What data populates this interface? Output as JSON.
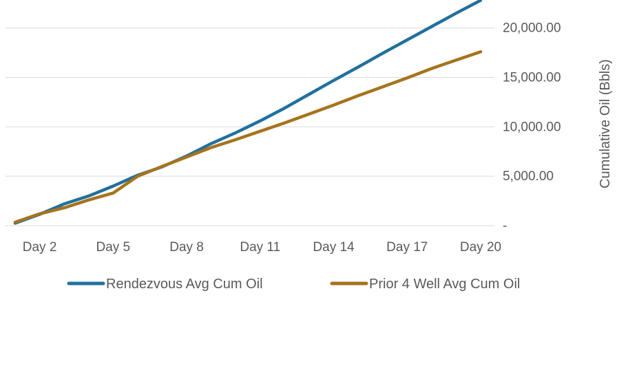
{
  "chart_data": {
    "type": "line",
    "title": "",
    "xlabel": "",
    "ylabel": "Cumulative Oil (Bbls)",
    "categories": [
      "Day 1",
      "Day 2",
      "Day 3",
      "Day 4",
      "Day 5",
      "Day 6",
      "Day 7",
      "Day 8",
      "Day 9",
      "Day 10",
      "Day 11",
      "Day 12",
      "Day 13",
      "Day 14",
      "Day 15",
      "Day 16",
      "Day 17",
      "Day 18",
      "Day 19",
      "Day 20"
    ],
    "x_tick_labels": [
      "Day 2",
      "Day 5",
      "Day 8",
      "Day 11",
      "Day 14",
      "Day 17",
      "Day 20"
    ],
    "y_tick_labels": [
      "-",
      "5,000.00",
      "10,000.00",
      "15,000.00",
      "20,000.00"
    ],
    "y_ticks": [
      0,
      5000,
      10000,
      15000,
      20000
    ],
    "ylim": [
      0,
      22000
    ],
    "y_axis_side": "right",
    "grid": "horizontal",
    "legend_position": "bottom",
    "series": [
      {
        "name": "Rendezvous Avg Cum Oil",
        "color": "#21709c",
        "values": [
          250,
          1150,
          2200,
          3000,
          4000,
          5100,
          5950,
          7050,
          8300,
          9400,
          10600,
          11900,
          13300,
          14700,
          16050,
          17450,
          18800,
          20150,
          21500,
          22800
        ]
      },
      {
        "name": "Prior 4 Well Avg Cum Oil",
        "color": "#a6731d",
        "values": [
          350,
          1200,
          1800,
          2600,
          3300,
          5000,
          6000,
          6950,
          7900,
          8700,
          9550,
          10400,
          11300,
          12200,
          13150,
          14050,
          14950,
          15900,
          16750,
          17600
        ]
      }
    ]
  }
}
